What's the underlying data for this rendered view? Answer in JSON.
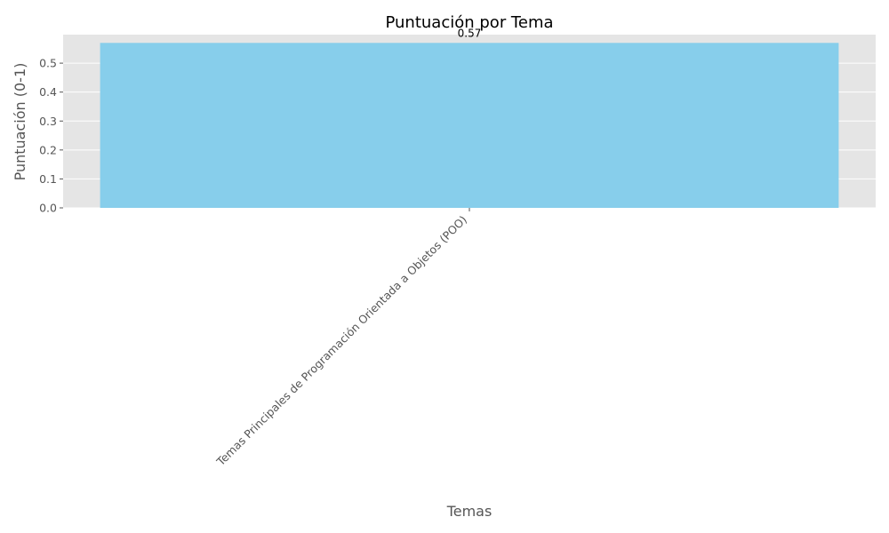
{
  "chart_data": {
    "type": "bar",
    "title": "Puntuación por Tema",
    "xlabel": "Temas",
    "ylabel": "Puntuación (0-1)",
    "categories": [
      "Temas Principales de Programación Orientada a Objetos (POO)"
    ],
    "values": [
      0.57
    ],
    "data_labels": [
      "0.57"
    ],
    "ylim": [
      0,
      0.5985
    ],
    "yticks": [
      0.0,
      0.1,
      0.2,
      0.3,
      0.4,
      0.5
    ],
    "ytick_labels": [
      "0.0",
      "0.1",
      "0.2",
      "0.3",
      "0.4",
      "0.5"
    ],
    "grid": true,
    "legend": "none",
    "colors": {
      "bar": "#87CEEB",
      "plot_background": "#E5E5E5",
      "grid": "#FFFFFF"
    }
  }
}
